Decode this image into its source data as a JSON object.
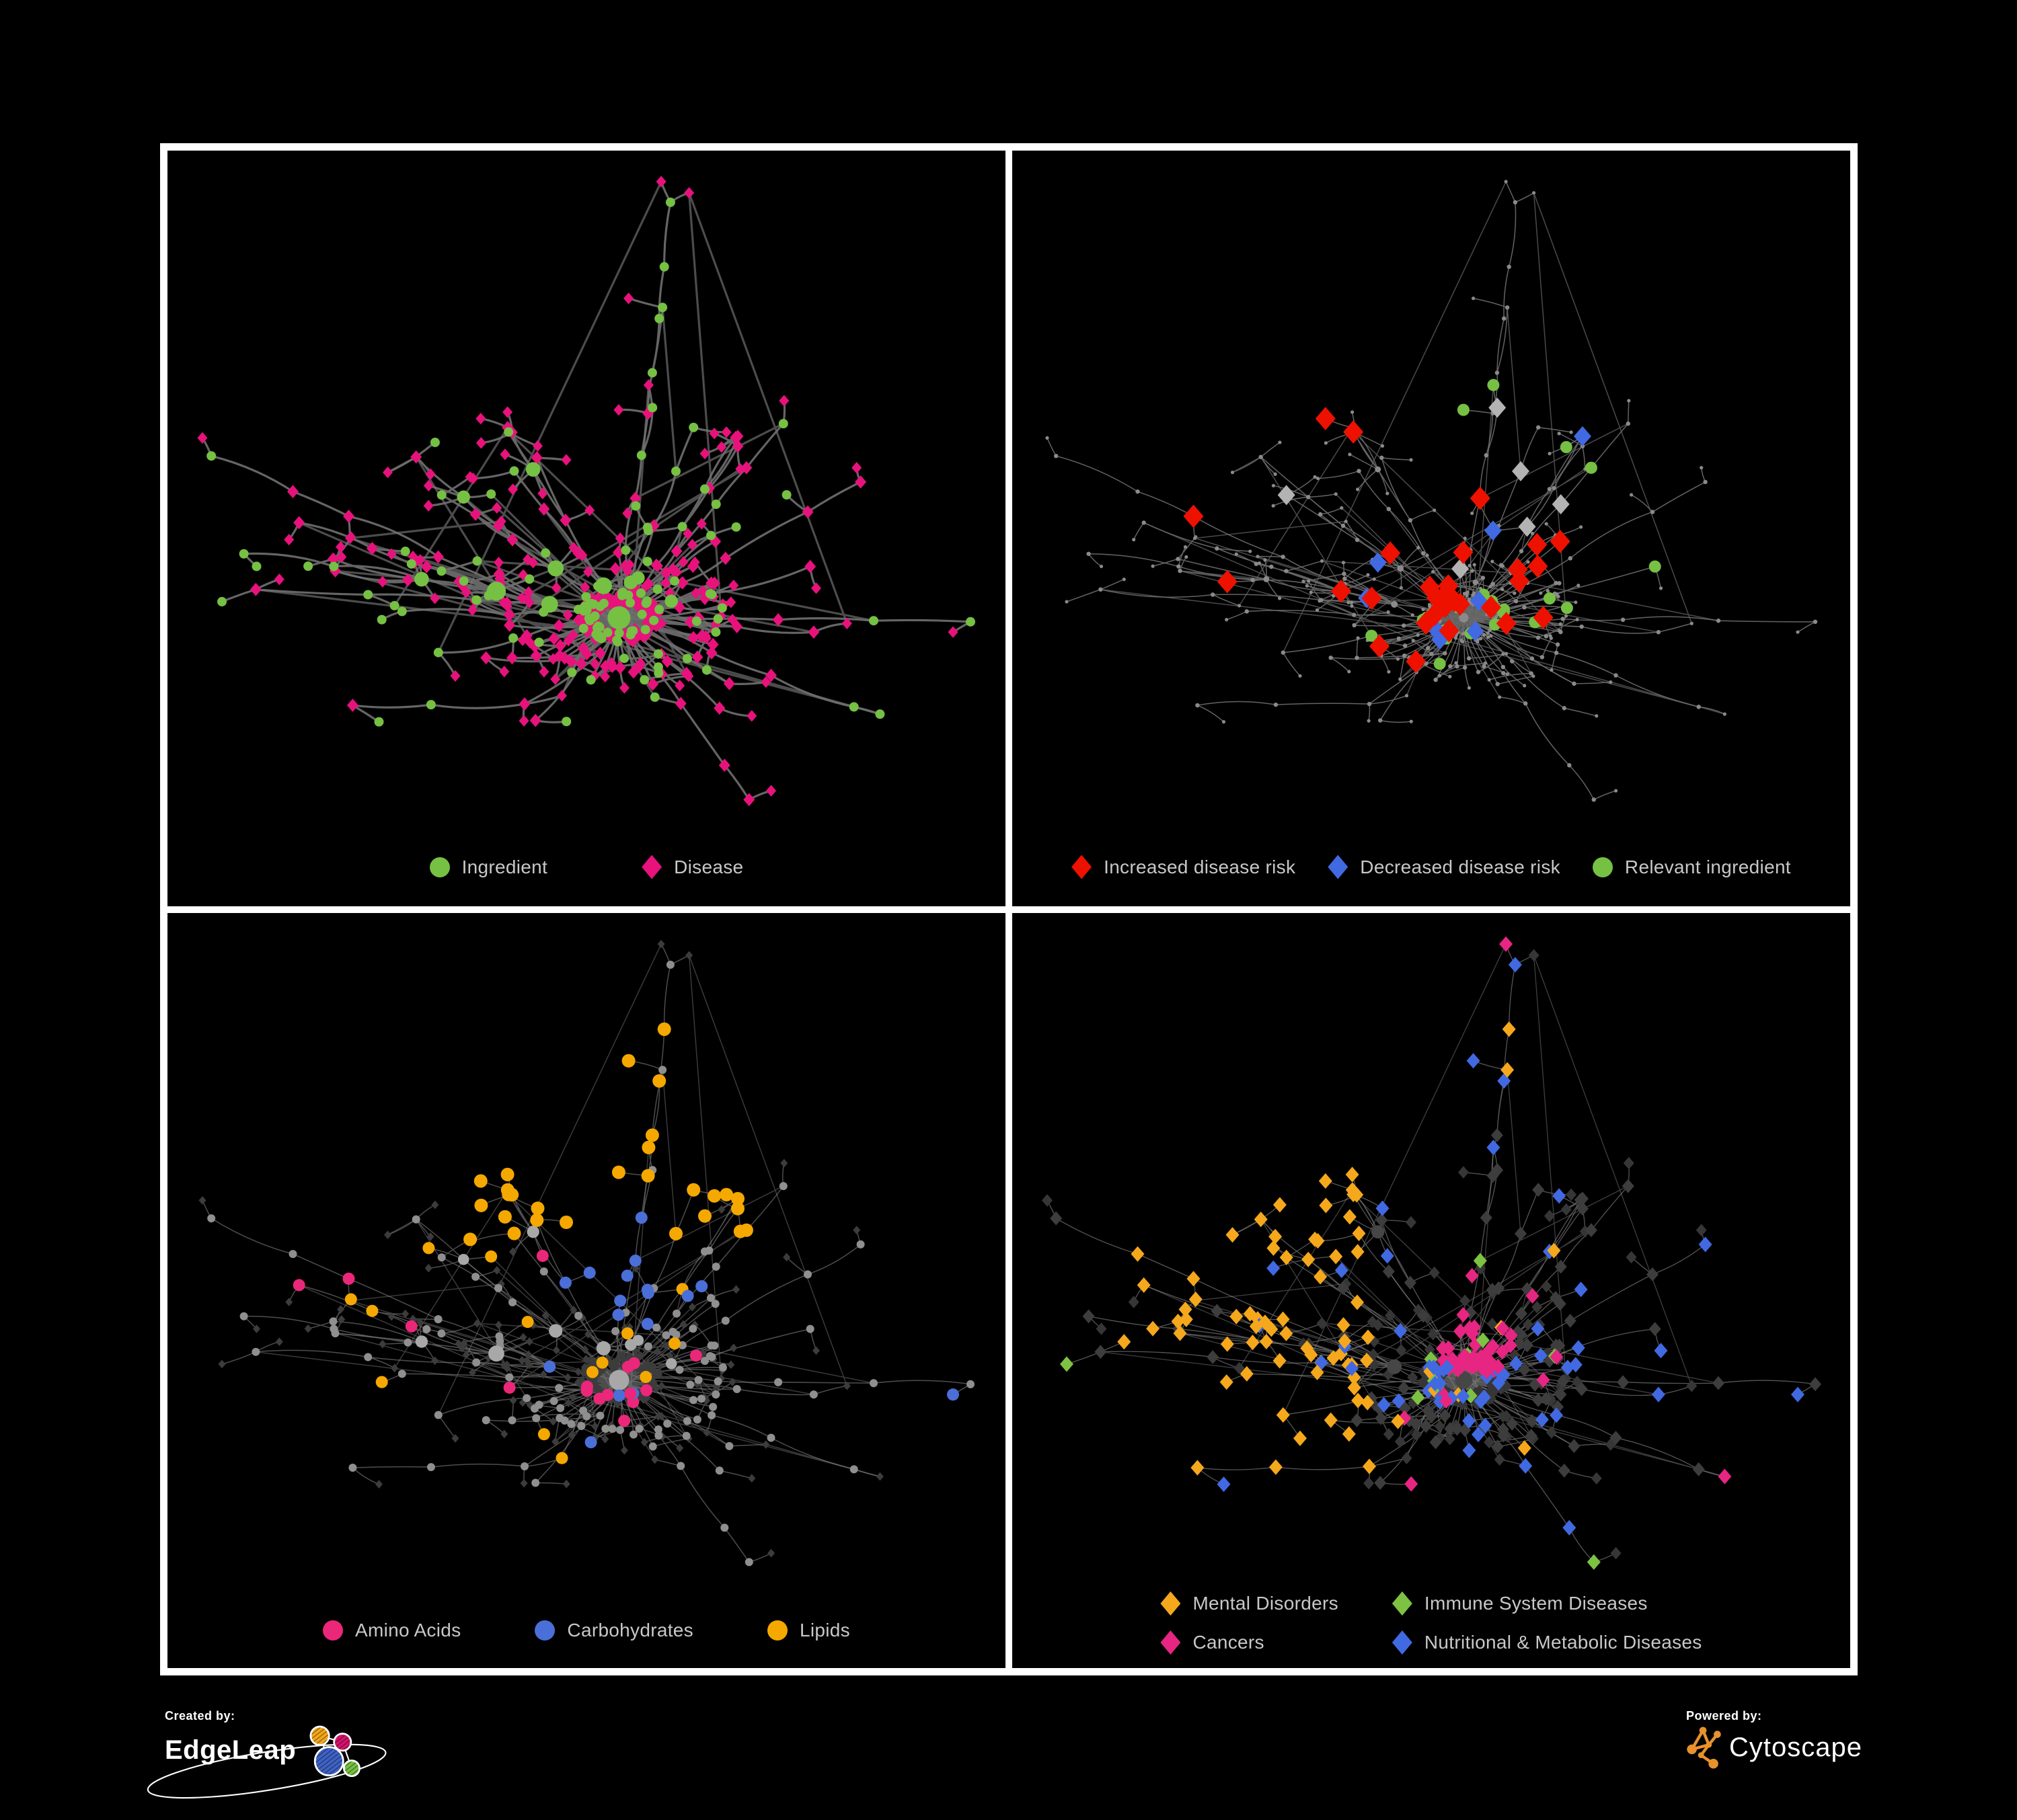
{
  "footer": {
    "created_by_label": "Created by:",
    "created_by_name": "EdgeLeap",
    "powered_by_label": "Powered by:",
    "powered_by_name": "Cytoscape"
  },
  "colors": {
    "page_bg": "#000000",
    "frame": "#FFFFFF",
    "panel_bg": "#000000",
    "legend_text": "#C8C8C8",
    "edgeleap_orange": "#F2A71B",
    "edgeleap_magenta": "#D2146C",
    "edgeleap_blue": "#3E62C4",
    "edgeleap_green": "#76C043",
    "cytoscape_orange": "#E8912D"
  },
  "graph": {
    "seed": 9,
    "nodes": 460,
    "chain_p": 0.24,
    "pref_exp": 1.8,
    "extra_edges": 55,
    "leaf_d": [
      34,
      30
    ],
    "branch_d": [
      80,
      95
    ]
  },
  "panels": [
    {
      "name": "ingredient-disease",
      "legend_columns": 0,
      "legend": [
        {
          "shape": "circle",
          "color": "#76C043",
          "label": "Ingredient"
        },
        {
          "shape": "diamond",
          "color": "#E8127C",
          "label": "Disease"
        }
      ],
      "style": {
        "paint_seed": 11,
        "edge": {
          "color": "#707070",
          "width": 3.2,
          "opacity": 0.9,
          "curve": 0.22
        },
        "leaf": {
          "shape": "diamond",
          "color": "#E8127C",
          "size": 7.5
        },
        "mid": {
          "shape": "diamond",
          "color": "#E8127C",
          "size": 8.5
        },
        "hub": {
          "shape": "circle",
          "color": "#76C043",
          "size": 7,
          "grow": 0.55,
          "max": 17,
          "degree": 5
        },
        "highlights": [
          {
            "shape": "circle",
            "color": "#76C043",
            "size": 7,
            "count": 120,
            "region": "scatter",
            "clustered": false,
            "max_degree": 4
          }
        ]
      }
    },
    {
      "name": "disease-risk",
      "legend_columns": 0,
      "legend": [
        {
          "shape": "diamond",
          "color": "#EE1100",
          "label": "Increased disease risk"
        },
        {
          "shape": "diamond",
          "color": "#4169E1",
          "label": "Decreased disease risk"
        },
        {
          "shape": "circle",
          "color": "#76C043",
          "label": "Relevant ingredient"
        }
      ],
      "style": {
        "paint_seed": 23,
        "edge": {
          "color": "#6E6E6E",
          "width": 1.5,
          "opacity": 0.9,
          "curve": 0.18
        },
        "leaf": {
          "shape": "circle",
          "color": "#8A8A8A",
          "size": 2.6
        },
        "mid": {
          "shape": "circle",
          "color": "#8A8A8A",
          "size": 3.2
        },
        "hub": {
          "shape": "circle",
          "color": "#8A8A8A",
          "size": 3.2,
          "grow": 0.18,
          "max": 7,
          "degree": 6
        },
        "highlights": [
          {
            "shape": "diamond",
            "color": "#EE1100",
            "size": 15,
            "count": 30,
            "region": "center-wide",
            "clustered": false
          },
          {
            "shape": "diamond",
            "color": "#4169E1",
            "size": 13,
            "count": 9,
            "region": "scatter",
            "clustered": false
          },
          {
            "shape": "diamond",
            "color": "#B3B3B3",
            "size": 13,
            "count": 6,
            "region": "center",
            "clustered": false
          },
          {
            "shape": "circle",
            "color": "#76C043",
            "size": 9,
            "count": 25,
            "region": "center-wide",
            "clustered": false
          }
        ]
      }
    },
    {
      "name": "nutrient-classes",
      "legend_columns": 0,
      "legend": [
        {
          "shape": "circle",
          "color": "#EB2779",
          "label": "Amino Acids"
        },
        {
          "shape": "circle",
          "color": "#4A6FD8",
          "label": "Carbohydrates"
        },
        {
          "shape": "circle",
          "color": "#F5A800",
          "label": "Lipids"
        }
      ],
      "style": {
        "paint_seed": 37,
        "edge": {
          "color": "#9A9A9A",
          "width": 1.5,
          "opacity": 0.5,
          "curve": 0.18
        },
        "leaf": {
          "shape": "diamond",
          "color": "#3C3C3C",
          "size": 5.5
        },
        "mid": {
          "shape": "circle",
          "color": "#8F8F8F",
          "size": 6
        },
        "hub": {
          "shape": "circle",
          "color": "#A8A8A8",
          "size": 6,
          "grow": 0.45,
          "max": 15,
          "degree": 5
        },
        "highlights": [
          {
            "shape": "circle",
            "color": "#F5A800",
            "size": 10,
            "count": 55,
            "region": "top-center",
            "clustered": true
          },
          {
            "shape": "circle",
            "color": "#F5A800",
            "size": 9,
            "count": 14,
            "region": "scatter",
            "clustered": false
          },
          {
            "shape": "circle",
            "color": "#4A6FD8",
            "size": 9,
            "count": 12,
            "region": "center",
            "clustered": true
          },
          {
            "shape": "circle",
            "color": "#4A6FD8",
            "size": 9,
            "count": 5,
            "region": "scatter",
            "clustered": false
          },
          {
            "shape": "circle",
            "color": "#EB2779",
            "size": 9,
            "count": 16,
            "region": "scatter",
            "clustered": false
          }
        ]
      }
    },
    {
      "name": "disease-classes",
      "legend_columns": 2,
      "legend": [
        {
          "shape": "diamond",
          "color": "#F5A81C",
          "label": "Mental Disorders"
        },
        {
          "shape": "diamond",
          "color": "#7DC242",
          "label": "Immune System Diseases"
        },
        {
          "shape": "diamond",
          "color": "#E72582",
          "label": "Cancers"
        },
        {
          "shape": "diamond",
          "color": "#4169E1",
          "label": "Nutritional & Metabolic Diseases"
        }
      ],
      "style": {
        "paint_seed": 53,
        "edge": {
          "color": "#9A9A9A",
          "width": 1.3,
          "opacity": 0.55,
          "curve": 0.18
        },
        "leaf": {
          "shape": "diamond",
          "color": "#363636",
          "size": 8
        },
        "mid": {
          "shape": "diamond",
          "color": "#3D3D3D",
          "size": 9
        },
        "hub": {
          "shape": "circle",
          "color": "#464646",
          "size": 7,
          "grow": 0.4,
          "max": 13,
          "degree": 6
        },
        "highlights": [
          {
            "shape": "diamond",
            "color": "#F5A81C",
            "size": 10,
            "count": 68,
            "region": "left",
            "clustered": true
          },
          {
            "shape": "diamond",
            "color": "#F5A81C",
            "size": 10,
            "count": 10,
            "region": "scatter",
            "clustered": false
          },
          {
            "shape": "diamond",
            "color": "#E72582",
            "size": 10,
            "count": 50,
            "region": "center-wide",
            "clustered": true
          },
          {
            "shape": "diamond",
            "color": "#E72582",
            "size": 10,
            "count": 10,
            "region": "scatter",
            "clustered": false
          },
          {
            "shape": "diamond",
            "color": "#4169E1",
            "size": 10,
            "count": 60,
            "region": "scatter",
            "clustered": false
          },
          {
            "shape": "diamond",
            "color": "#7DC242",
            "size": 10,
            "count": 11,
            "region": "scatter",
            "clustered": false
          }
        ]
      }
    }
  ],
  "chart_data": [
    {
      "type": "network",
      "panel": "top-left",
      "categories": [
        {
          "label": "Ingredient",
          "marker": "circle",
          "color": "#76C043"
        },
        {
          "label": "Disease",
          "marker": "diamond",
          "color": "#E8127C"
        }
      ],
      "edge_color": "#707070"
    },
    {
      "type": "network",
      "panel": "top-right",
      "categories": [
        {
          "label": "Increased disease risk",
          "marker": "diamond",
          "color": "#EE1100"
        },
        {
          "label": "Decreased disease risk",
          "marker": "diamond",
          "color": "#4169E1"
        },
        {
          "label": "Relevant ingredient",
          "marker": "circle",
          "color": "#76C043"
        }
      ],
      "edge_color": "#6E6E6E"
    },
    {
      "type": "network",
      "panel": "bottom-left",
      "categories": [
        {
          "label": "Amino Acids",
          "marker": "circle",
          "color": "#EB2779"
        },
        {
          "label": "Carbohydrates",
          "marker": "circle",
          "color": "#4A6FD8"
        },
        {
          "label": "Lipids",
          "marker": "circle",
          "color": "#F5A800"
        }
      ],
      "edge_color": "#9A9A9A"
    },
    {
      "type": "network",
      "panel": "bottom-right",
      "categories": [
        {
          "label": "Mental Disorders",
          "marker": "diamond",
          "color": "#F5A81C"
        },
        {
          "label": "Immune System Diseases",
          "marker": "diamond",
          "color": "#7DC242"
        },
        {
          "label": "Cancers",
          "marker": "diamond",
          "color": "#E72582"
        },
        {
          "label": "Nutritional & Metabolic Diseases",
          "marker": "diamond",
          "color": "#4169E1"
        }
      ],
      "edge_color": "#9A9A9A"
    }
  ]
}
